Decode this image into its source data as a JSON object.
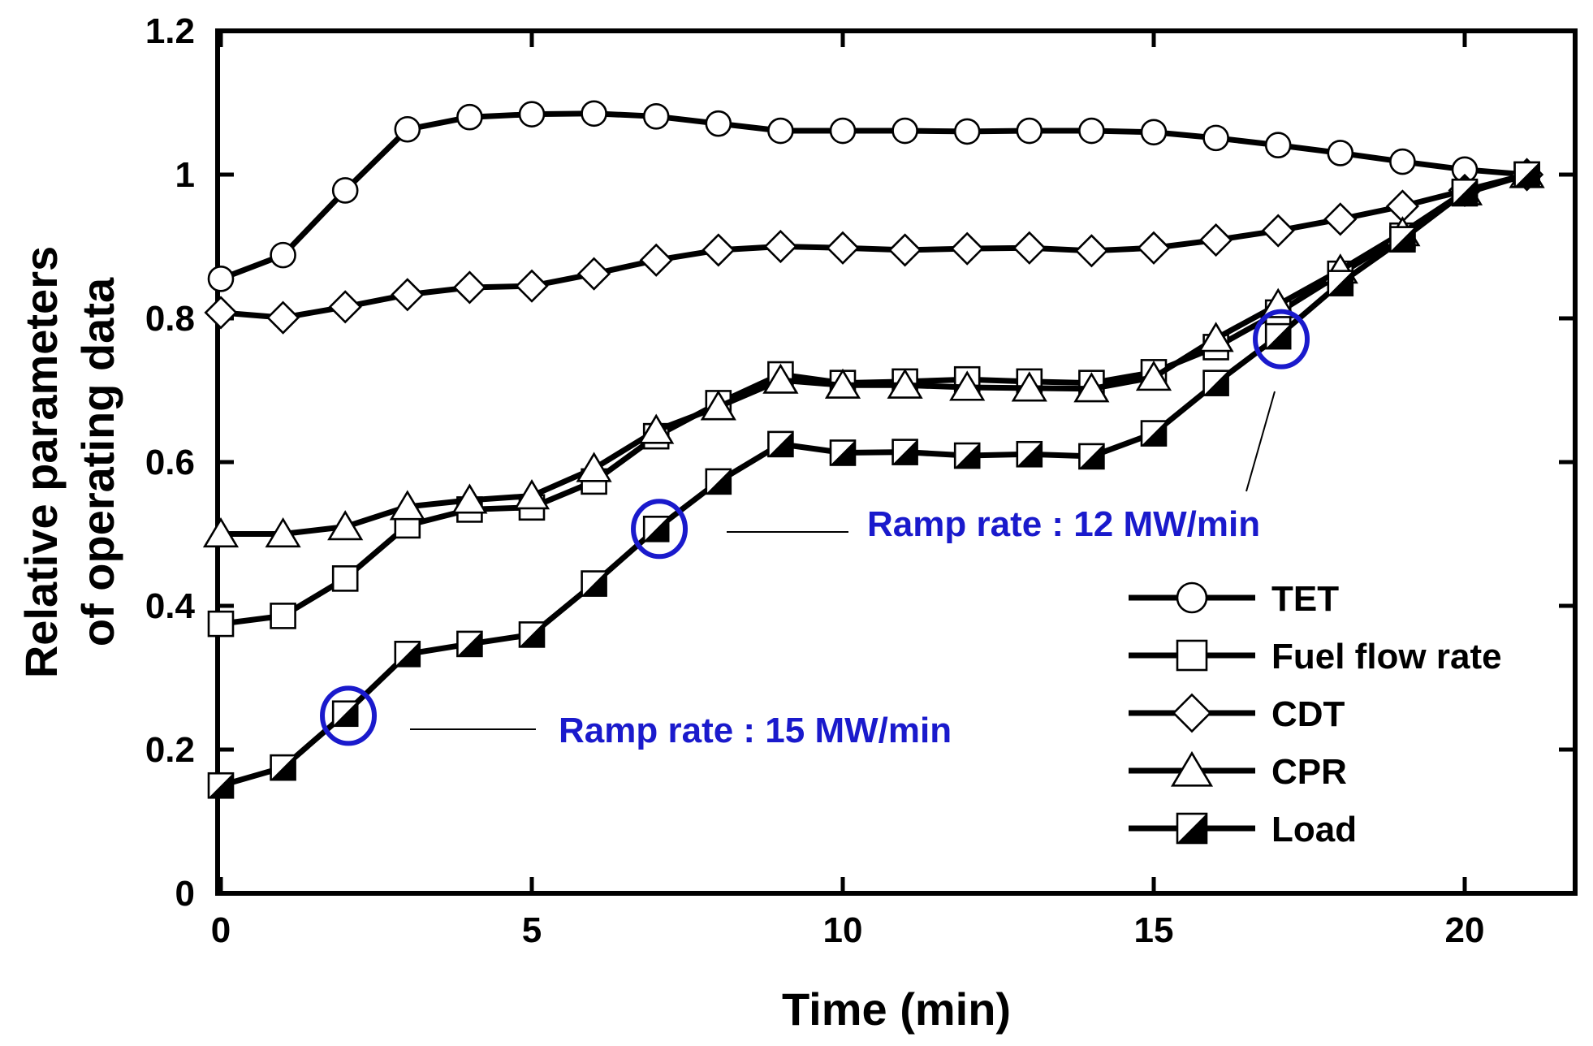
{
  "chart_data": {
    "type": "line",
    "title": "",
    "xlabel": "Time (min)",
    "ylabel": [
      "Relative parameters",
      "of operating data"
    ],
    "xlim": [
      0,
      21.5
    ],
    "ylim": [
      0,
      1.2
    ],
    "xticks": [
      0,
      5,
      10,
      15,
      20
    ],
    "xtick_labels": [
      "0",
      "5",
      "10",
      "15",
      "20"
    ],
    "yticks": [
      0,
      0.2,
      0.4,
      0.6,
      0.8,
      1.0,
      1.2
    ],
    "ytick_labels": [
      "0",
      "0.2",
      "0.4",
      "0.6",
      "0.8",
      "1",
      "1.2"
    ],
    "grid": false,
    "legend_position": "bottom-right",
    "x": [
      0,
      1,
      2,
      3,
      4,
      5,
      6,
      7,
      8,
      9,
      10,
      11,
      12,
      13,
      14,
      15,
      16,
      17,
      18,
      19,
      20,
      21
    ],
    "series": [
      {
        "name": "TET",
        "marker": "circle",
        "values": [
          0.855,
          0.888,
          0.978,
          1.063,
          1.08,
          1.084,
          1.085,
          1.081,
          1.071,
          1.061,
          1.061,
          1.061,
          1.06,
          1.061,
          1.061,
          1.059,
          1.051,
          1.041,
          1.03,
          1.018,
          1.007,
          1.0
        ]
      },
      {
        "name": "Fuel flow rate",
        "marker": "square",
        "values": [
          0.375,
          0.386,
          0.438,
          0.512,
          0.534,
          0.537,
          0.573,
          0.636,
          0.682,
          0.722,
          0.71,
          0.712,
          0.715,
          0.712,
          0.71,
          0.725,
          0.76,
          0.808,
          0.862,
          0.915,
          0.974,
          1.0
        ]
      },
      {
        "name": "CDT",
        "marker": "diamond",
        "values": [
          0.808,
          0.801,
          0.816,
          0.833,
          0.843,
          0.845,
          0.862,
          0.881,
          0.895,
          0.9,
          0.898,
          0.895,
          0.897,
          0.898,
          0.894,
          0.898,
          0.909,
          0.922,
          0.938,
          0.956,
          0.978,
          1.0
        ]
      },
      {
        "name": "CPR",
        "marker": "triangle",
        "values": [
          0.5,
          0.5,
          0.51,
          0.538,
          0.547,
          0.553,
          0.591,
          0.644,
          0.677,
          0.714,
          0.707,
          0.707,
          0.704,
          0.703,
          0.702,
          0.718,
          0.772,
          0.819,
          0.867,
          0.919,
          0.976,
          1.0
        ]
      },
      {
        "name": "Load",
        "marker": "half-filled-square",
        "values": [
          0.15,
          0.175,
          0.25,
          0.333,
          0.347,
          0.36,
          0.431,
          0.507,
          0.573,
          0.625,
          0.613,
          0.614,
          0.609,
          0.611,
          0.608,
          0.64,
          0.71,
          0.775,
          0.849,
          0.91,
          0.976,
          1.0
        ]
      }
    ],
    "annotations": [
      {
        "text": "Ramp rate : 15 MW/min",
        "circle_at": [
          2.05,
          0.247
        ],
        "color": "#1a1acc"
      },
      {
        "text": "Ramp rate  : 12 MW/min",
        "circle_at": [
          7.05,
          0.507
        ],
        "color": "#1a1acc"
      },
      {
        "text": "",
        "circle_at": [
          17.05,
          0.771
        ],
        "color": "#1a1acc"
      }
    ]
  }
}
